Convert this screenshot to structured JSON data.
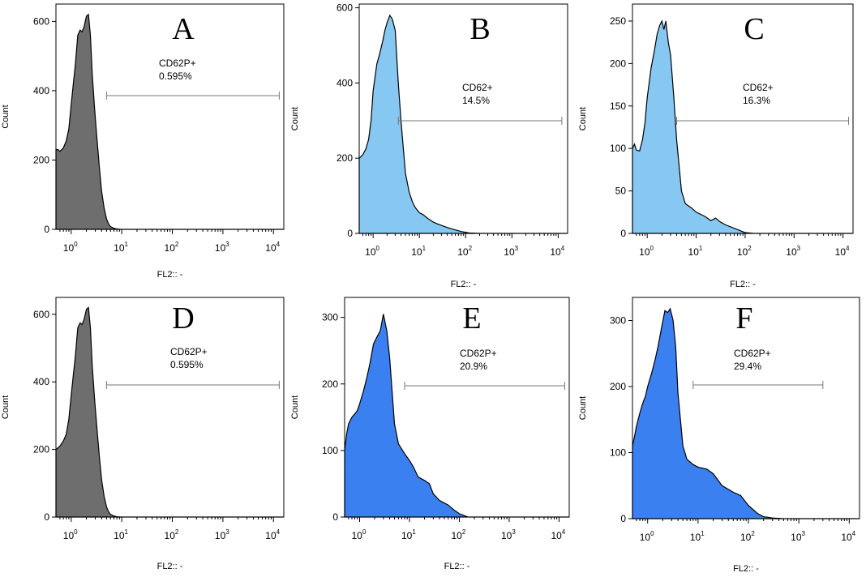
{
  "chart_data": [
    {
      "type": "area",
      "panel": "A",
      "xlabel": "FL2:: -",
      "ylabel": "Count",
      "xscale": "log",
      "xlim": [
        0.5,
        16000
      ],
      "ylim": [
        0,
        650
      ],
      "yticks": [
        0,
        200,
        400,
        600
      ],
      "xticks": [
        {
          "base": "10",
          "exp": "0",
          "value": 1
        },
        {
          "base": "10",
          "exp": "1",
          "value": 10
        },
        {
          "base": "10",
          "exp": "2",
          "value": 100
        },
        {
          "base": "10",
          "exp": "3",
          "value": 1000
        },
        {
          "base": "10",
          "exp": "4",
          "value": 10000
        }
      ],
      "fill": "#6e6e6e",
      "gate": {
        "name": "CD62P+",
        "percent": "0.595%",
        "range": [
          5,
          13000
        ]
      },
      "x": [
        0.5,
        0.55,
        0.6,
        0.7,
        0.8,
        0.9,
        1.0,
        1.1,
        1.2,
        1.35,
        1.5,
        1.65,
        1.8,
        2.0,
        2.2,
        2.4,
        2.6,
        2.9,
        3.2,
        3.6,
        4.0,
        4.5,
        5.0,
        5.5,
        6.0,
        7.0,
        8.0,
        10,
        15,
        30,
        100,
        1000,
        16000
      ],
      "values": [
        230,
        230,
        225,
        235,
        255,
        290,
        360,
        420,
        470,
        560,
        575,
        570,
        585,
        615,
        620,
        560,
        450,
        350,
        270,
        180,
        110,
        60,
        30,
        15,
        8,
        3,
        1,
        0,
        0,
        0,
        0,
        0,
        0
      ]
    },
    {
      "type": "area",
      "panel": "B",
      "xlabel": "FL2:: -",
      "ylabel": "Count",
      "xscale": "log",
      "xlim": [
        0.5,
        16000
      ],
      "ylim": [
        0,
        610
      ],
      "yticks": [
        0,
        200,
        400,
        600
      ],
      "xticks": [
        {
          "base": "10",
          "exp": "0",
          "value": 1
        },
        {
          "base": "10",
          "exp": "1",
          "value": 10
        },
        {
          "base": "10",
          "exp": "2",
          "value": 100
        },
        {
          "base": "10",
          "exp": "3",
          "value": 1000
        },
        {
          "base": "10",
          "exp": "4",
          "value": 10000
        }
      ],
      "fill": "#86c8f2",
      "gate": {
        "name": "CD62+",
        "percent": "14.5%",
        "range": [
          3.5,
          12000
        ]
      },
      "x": [
        0.5,
        0.55,
        0.6,
        0.7,
        0.8,
        0.9,
        1.0,
        1.2,
        1.4,
        1.6,
        1.8,
        2.0,
        2.3,
        2.6,
        3.0,
        3.5,
        4.0,
        5.0,
        6.0,
        7.0,
        8.0,
        10,
        12,
        15,
        20,
        25,
        35,
        50,
        80,
        120,
        200,
        1000,
        16000
      ],
      "values": [
        200,
        205,
        210,
        225,
        250,
        300,
        380,
        450,
        480,
        510,
        540,
        560,
        580,
        570,
        540,
        400,
        300,
        160,
        110,
        85,
        70,
        55,
        50,
        40,
        30,
        25,
        18,
        12,
        5,
        1,
        0,
        0,
        0
      ]
    },
    {
      "type": "area",
      "panel": "C",
      "xlabel": "FL2:: -",
      "ylabel": "Count",
      "xscale": "log",
      "xlim": [
        0.5,
        16000
      ],
      "ylim": [
        0,
        270
      ],
      "yticks": [
        0,
        50,
        100,
        150,
        200,
        250
      ],
      "xticks": [
        {
          "base": "10",
          "exp": "0",
          "value": 1
        },
        {
          "base": "10",
          "exp": "1",
          "value": 10
        },
        {
          "base": "10",
          "exp": "2",
          "value": 100
        },
        {
          "base": "10",
          "exp": "3",
          "value": 1000
        },
        {
          "base": "10",
          "exp": "4",
          "value": 10000
        }
      ],
      "fill": "#86c8f2",
      "gate": {
        "name": "CD62+",
        "percent": "16.3%",
        "range": [
          4,
          13000
        ]
      },
      "x": [
        0.5,
        0.55,
        0.6,
        0.7,
        0.8,
        0.9,
        1.0,
        1.2,
        1.4,
        1.6,
        1.8,
        2.0,
        2.2,
        2.4,
        2.7,
        3.0,
        3.5,
        4.0,
        5.0,
        6.0,
        8.0,
        10,
        15,
        20,
        25,
        30,
        40,
        60,
        100,
        150,
        1000,
        16000
      ],
      "values": [
        100,
        105,
        98,
        97,
        110,
        130,
        160,
        195,
        215,
        235,
        245,
        250,
        240,
        250,
        225,
        210,
        160,
        110,
        50,
        35,
        30,
        25,
        20,
        15,
        18,
        14,
        10,
        6,
        1,
        0,
        0,
        0
      ]
    },
    {
      "type": "area",
      "panel": "D",
      "xlabel": "FL2:: -",
      "ylabel": "Count",
      "xscale": "log",
      "xlim": [
        0.5,
        16000
      ],
      "ylim": [
        0,
        650
      ],
      "yticks": [
        0,
        200,
        400,
        600
      ],
      "xticks": [
        {
          "base": "10",
          "exp": "0",
          "value": 1
        },
        {
          "base": "10",
          "exp": "1",
          "value": 10
        },
        {
          "base": "10",
          "exp": "2",
          "value": 100
        },
        {
          "base": "10",
          "exp": "3",
          "value": 1000
        },
        {
          "base": "10",
          "exp": "4",
          "value": 10000
        }
      ],
      "fill": "#6e6e6e",
      "gate": {
        "name": "CD62P+",
        "percent": "0.595%",
        "range": [
          5,
          13000
        ]
      },
      "x": [
        0.5,
        0.55,
        0.6,
        0.7,
        0.8,
        0.9,
        1.0,
        1.1,
        1.2,
        1.35,
        1.5,
        1.65,
        1.8,
        2.0,
        2.2,
        2.4,
        2.6,
        2.9,
        3.2,
        3.6,
        4.0,
        4.5,
        5.0,
        5.5,
        6.0,
        7.0,
        8.0,
        10,
        15,
        30,
        100,
        1000,
        16000
      ],
      "values": [
        200,
        205,
        210,
        225,
        245,
        290,
        360,
        420,
        470,
        560,
        575,
        570,
        585,
        615,
        620,
        560,
        450,
        350,
        270,
        180,
        110,
        60,
        30,
        15,
        8,
        3,
        1,
        0,
        0,
        0,
        0,
        0,
        0
      ]
    },
    {
      "type": "area",
      "panel": "E",
      "xlabel": "FL2:: -",
      "ylabel": "Count",
      "xscale": "log",
      "xlim": [
        0.5,
        16000
      ],
      "ylim": [
        0,
        330
      ],
      "yticks": [
        0,
        100,
        200,
        300
      ],
      "xticks": [
        {
          "base": "10",
          "exp": "0",
          "value": 1
        },
        {
          "base": "10",
          "exp": "1",
          "value": 10
        },
        {
          "base": "10",
          "exp": "2",
          "value": 100
        },
        {
          "base": "10",
          "exp": "3",
          "value": 1000
        },
        {
          "base": "10",
          "exp": "4",
          "value": 10000
        }
      ],
      "fill": "#3a80f0",
      "gate": {
        "name": "CD62P+",
        "percent": "20.9%",
        "range": [
          8,
          13000
        ]
      },
      "x": [
        0.5,
        0.55,
        0.6,
        0.7,
        0.8,
        0.9,
        1.0,
        1.2,
        1.4,
        1.6,
        1.9,
        2.2,
        2.6,
        3.0,
        3.5,
        4.0,
        5.0,
        6.0,
        8.0,
        10,
        12,
        15,
        20,
        25,
        30,
        40,
        60,
        80,
        100,
        150,
        1000,
        16000
      ],
      "values": [
        100,
        125,
        140,
        150,
        155,
        160,
        170,
        190,
        210,
        230,
        260,
        270,
        280,
        305,
        280,
        240,
        140,
        110,
        95,
        85,
        75,
        60,
        55,
        50,
        35,
        25,
        18,
        10,
        5,
        0,
        0,
        0
      ]
    },
    {
      "type": "area",
      "panel": "F",
      "xlabel": "FL2:: -",
      "ylabel": "Count",
      "xscale": "log",
      "xlim": [
        0.5,
        16000
      ],
      "ylim": [
        0,
        335
      ],
      "yticks": [
        0,
        100,
        200,
        300
      ],
      "xticks": [
        {
          "base": "10",
          "exp": "0",
          "value": 1
        },
        {
          "base": "10",
          "exp": "1",
          "value": 10
        },
        {
          "base": "10",
          "exp": "2",
          "value": 100
        },
        {
          "base": "10",
          "exp": "3",
          "value": 1000
        },
        {
          "base": "10",
          "exp": "4",
          "value": 10000
        }
      ],
      "fill": "#3a80f0",
      "gate": {
        "name": "CD62P+",
        "percent": "29.4%",
        "range": [
          8,
          3000
        ]
      },
      "x": [
        0.5,
        0.55,
        0.6,
        0.7,
        0.8,
        0.9,
        1.0,
        1.2,
        1.4,
        1.6,
        1.9,
        2.2,
        2.5,
        2.8,
        3.2,
        3.6,
        4.0,
        5.0,
        6.0,
        8.0,
        10,
        15,
        20,
        30,
        50,
        70,
        100,
        150,
        200,
        300,
        500,
        1000,
        16000
      ],
      "values": [
        110,
        125,
        140,
        160,
        175,
        185,
        200,
        220,
        240,
        260,
        290,
        315,
        312,
        318,
        300,
        260,
        190,
        110,
        90,
        82,
        78,
        75,
        68,
        50,
        40,
        35,
        20,
        8,
        3,
        1,
        0,
        0,
        0
      ]
    }
  ]
}
